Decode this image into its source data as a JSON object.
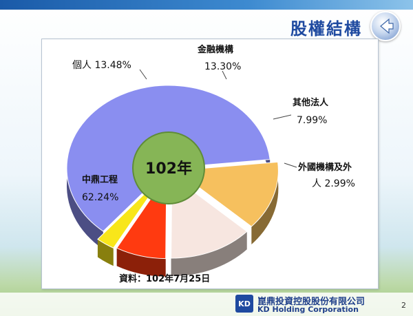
{
  "header": {
    "title": "股權結構"
  },
  "chart_data": {
    "type": "pie",
    "center_label": "102年",
    "slices": [
      {
        "name": "中鼎工程",
        "value": 62.24,
        "pct_label": "62.24%",
        "color": "#8a8ef0"
      },
      {
        "name": "個人",
        "value": 13.48,
        "pct_label": "13.48%",
        "color": "#f6c05e"
      },
      {
        "name": "金融機構",
        "value": 13.3,
        "pct_label": "13.30%",
        "color": "#f7e6e0"
      },
      {
        "name": "其他法人",
        "value": 7.99,
        "pct_label": "7.99%",
        "color": "#ff3a10"
      },
      {
        "name": "外國機構及外人",
        "value": 2.99,
        "pct_label": "2.99%",
        "color": "#f8e61a"
      }
    ],
    "source_note": "資料：102年7月25日"
  },
  "labels": {
    "zhongding_name": "中鼎工程",
    "zhongding_pct": "62.24%",
    "individual": "個人 13.48%",
    "financial_name": "金融機構",
    "financial_pct": "13.30%",
    "other_name": "其他法人",
    "other_pct": "7.99%",
    "foreign_line1": "外國機構及外",
    "foreign_line2": "人 2.99%"
  },
  "footer": {
    "company_zh": "崑鼎投資控股股份有限公司",
    "company_en": "KD Holding Corporation",
    "logo_text": "KD",
    "page": "2"
  }
}
